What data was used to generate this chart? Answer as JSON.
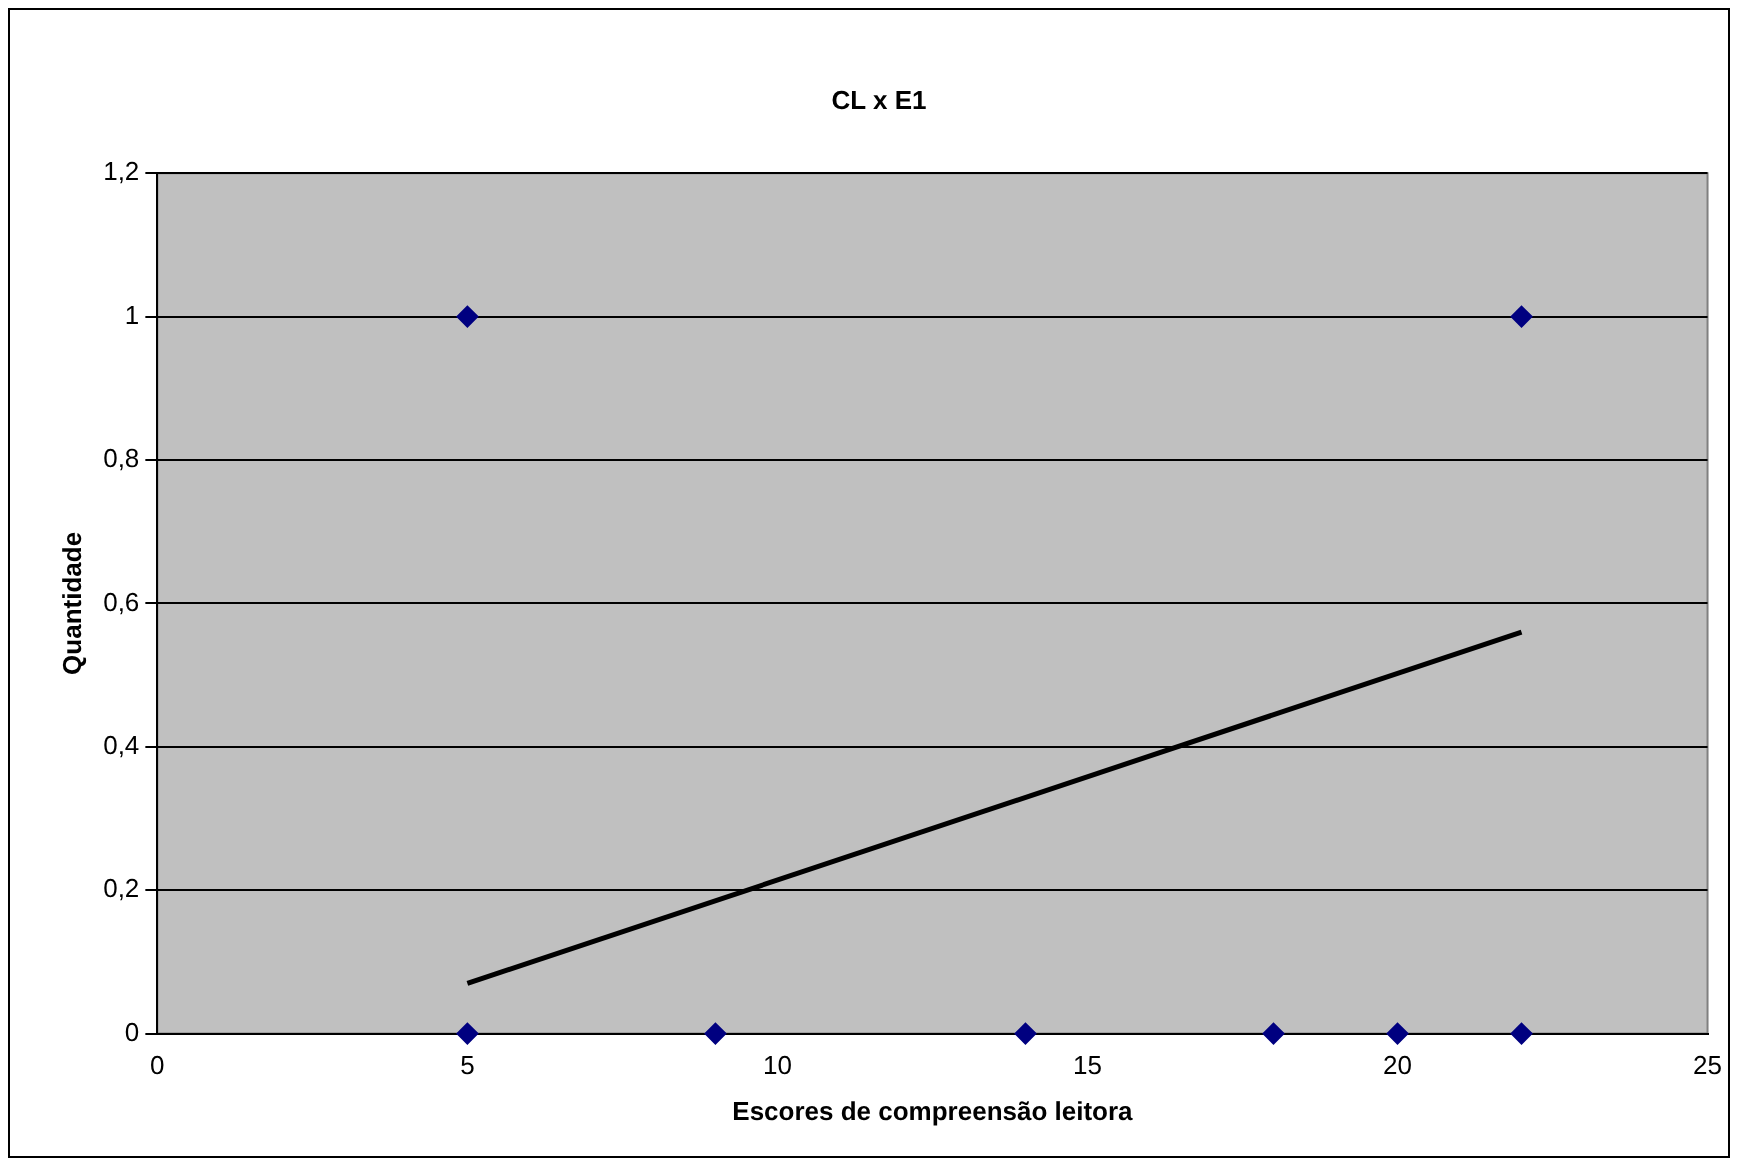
{
  "chart_data": {
    "type": "scatter",
    "title": "CL x E1",
    "xlabel": "Escores de compreensão leitora",
    "ylabel": "Quantidade",
    "xlim": [
      0,
      25
    ],
    "xticks": [
      0,
      5,
      10,
      15,
      20,
      25
    ],
    "ylim": [
      0,
      1.2
    ],
    "yticks": [
      0,
      {
        "value": 0.2,
        "label": "0,2"
      },
      {
        "value": 0.4,
        "label": "0,4"
      },
      {
        "value": 0.6,
        "label": "0,6"
      },
      {
        "value": 0.8,
        "label": "0,8"
      },
      1,
      {
        "value": 1.2,
        "label": "1,2"
      }
    ],
    "grid": "y",
    "legend": false,
    "marker": "diamond",
    "series": [
      {
        "type": "scatter",
        "color": "#000080",
        "x": [
          5,
          22,
          5,
          9,
          14,
          18,
          20,
          22
        ],
        "values": [
          1,
          1,
          0,
          0,
          0,
          0,
          0,
          0
        ]
      },
      {
        "type": "line",
        "color": "#000000",
        "marker": "none",
        "x": [
          5,
          22
        ],
        "values": [
          0.07,
          0.56
        ]
      }
    ]
  }
}
